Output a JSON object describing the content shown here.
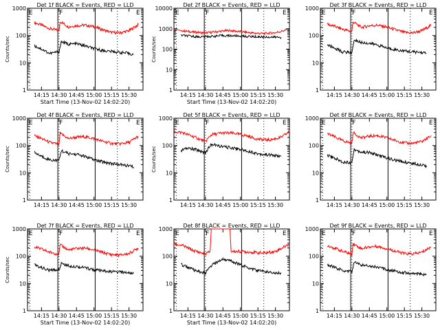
{
  "colors": {
    "events": "#000000",
    "lld": "#ff0000",
    "background": "#ffffff",
    "axes": "#000000"
  },
  "chart_data": [
    {
      "type": "line",
      "title": "Det 1f BLACK = Events, RED = LLD",
      "xlabel": "Start Time (13-Nov-02 14:02:20)",
      "ylabel": "Counts/sec",
      "yscale": "log",
      "ylim": [
        1,
        1000
      ],
      "y_ticks": [
        "1",
        "10",
        "100",
        "1000"
      ],
      "x_ticks": [
        "14:15",
        "14:30",
        "14:45",
        "15:00",
        "15:15",
        "15:30"
      ],
      "markers": [
        "E",
        "F",
        "E"
      ],
      "series": [
        {
          "key": "lld",
          "x": [
            "14:09",
            "14:15",
            "14:22",
            "14:30",
            "14:31",
            "14:38",
            "14:45",
            "14:52",
            "15:00",
            "15:08",
            "15:15",
            "15:22",
            "15:30",
            "15:38"
          ],
          "y": [
            300,
            240,
            180,
            150,
            330,
            210,
            230,
            240,
            210,
            160,
            130,
            125,
            150,
            250
          ]
        },
        {
          "key": "events",
          "x": [
            "14:09",
            "14:15",
            "14:22",
            "14:29",
            "14:30",
            "14:32",
            "14:38",
            "14:45",
            "14:52",
            "15:00",
            "15:08",
            "15:15",
            "15:22",
            "15:30",
            "15:34"
          ],
          "y": [
            42,
            32,
            22,
            25,
            25,
            60,
            48,
            50,
            42,
            33,
            28,
            26,
            24,
            22,
            20
          ]
        }
      ]
    },
    {
      "type": "line",
      "title": "Det 2f BLACK = Events, RED = LLD",
      "xlabel": "Start Time (13-Nov-02 14:02:20)",
      "ylabel": "Counts/sec",
      "yscale": "log",
      "ylim": [
        1,
        10000
      ],
      "y_ticks": [
        "1",
        "10",
        "100",
        "1000",
        "10000"
      ],
      "x_ticks": [
        "14:15",
        "14:30",
        "14:45",
        "15:00",
        "15:15",
        "15:30"
      ],
      "markers": [
        "E",
        "F",
        "E"
      ],
      "series": [
        {
          "key": "lld",
          "x": [
            "14:03",
            "14:10",
            "14:20",
            "14:30",
            "14:40",
            "14:50",
            "15:00",
            "15:10",
            "15:20",
            "15:30",
            "15:40"
          ],
          "y": [
            950,
            800,
            680,
            620,
            720,
            820,
            720,
            620,
            580,
            640,
            880
          ]
        },
        {
          "key": "events",
          "x": [
            "14:09",
            "14:15",
            "14:25",
            "14:35",
            "14:45",
            "14:55",
            "15:05",
            "15:15",
            "15:25",
            "15:35"
          ],
          "y": [
            480,
            440,
            400,
            420,
            460,
            450,
            420,
            400,
            390,
            380
          ]
        }
      ]
    },
    {
      "type": "line",
      "title": "Det 3f BLACK = Events, RED = LLD",
      "xlabel": "",
      "ylabel": "",
      "yscale": "log",
      "ylim": [
        1,
        1000
      ],
      "y_ticks": [
        "1",
        "10",
        "100",
        "1000"
      ],
      "x_ticks": [
        "14:15",
        "14:30",
        "14:45",
        "15:00",
        "15:15",
        "15:30"
      ],
      "markers": [
        "E",
        "F",
        "E"
      ],
      "series": [
        {
          "key": "lld",
          "x": [
            "14:09",
            "14:15",
            "14:22",
            "14:30",
            "14:31",
            "14:38",
            "14:45",
            "14:52",
            "15:00",
            "15:08",
            "15:15",
            "15:22",
            "15:30",
            "15:38"
          ],
          "y": [
            260,
            220,
            170,
            140,
            320,
            200,
            230,
            240,
            200,
            160,
            130,
            125,
            150,
            240
          ]
        },
        {
          "key": "events",
          "x": [
            "14:09",
            "14:15",
            "14:22",
            "14:29",
            "14:30",
            "14:32",
            "14:38",
            "14:45",
            "14:52",
            "15:00",
            "15:08",
            "15:15",
            "15:22",
            "15:30",
            "15:34"
          ],
          "y": [
            45,
            35,
            25,
            24,
            24,
            70,
            55,
            52,
            45,
            35,
            30,
            27,
            25,
            24,
            22
          ]
        }
      ]
    },
    {
      "type": "line",
      "title": "Det 4f BLACK = Events, RED = LLD",
      "xlabel": "",
      "ylabel": "Counts/sec",
      "yscale": "log",
      "ylim": [
        1,
        1000
      ],
      "y_ticks": [
        "1",
        "10",
        "100",
        "1000"
      ],
      "x_ticks": [
        "14:15",
        "14:30",
        "14:45",
        "15:00",
        "15:15",
        "15:30"
      ],
      "markers": [
        "E",
        "F",
        "E"
      ],
      "series": [
        {
          "key": "lld",
          "x": [
            "14:09",
            "14:15",
            "14:22",
            "14:30",
            "14:31",
            "14:38",
            "14:45",
            "14:52",
            "15:00",
            "15:08",
            "15:15",
            "15:22",
            "15:30",
            "15:38"
          ],
          "y": [
            230,
            180,
            130,
            110,
            280,
            180,
            200,
            210,
            180,
            140,
            120,
            115,
            130,
            220
          ]
        },
        {
          "key": "events",
          "x": [
            "14:09",
            "14:15",
            "14:22",
            "14:29",
            "14:30",
            "14:32",
            "14:38",
            "14:45",
            "14:52",
            "15:00",
            "15:08",
            "15:15",
            "15:22",
            "15:30",
            "15:34"
          ],
          "y": [
            55,
            40,
            30,
            28,
            28,
            65,
            50,
            48,
            40,
            30,
            25,
            22,
            20,
            18,
            16
          ]
        }
      ]
    },
    {
      "type": "line",
      "title": "Det 5f BLACK = Events, RED = LLD",
      "xlabel": "",
      "ylabel": "Counts/sec",
      "yscale": "log",
      "ylim": [
        1,
        1000
      ],
      "y_ticks": [
        "1",
        "10",
        "100",
        "1000"
      ],
      "x_ticks": [
        "14:15",
        "14:30",
        "14:45",
        "15:00",
        "15:15",
        "15:30"
      ],
      "markers": [
        "E",
        "F",
        "E"
      ],
      "series": [
        {
          "key": "lld",
          "x": [
            "14:03",
            "14:10",
            "14:20",
            "14:30",
            "14:35",
            "14:45",
            "14:55",
            "15:05",
            "15:15",
            "15:25",
            "15:35",
            "15:42"
          ],
          "y": [
            320,
            300,
            210,
            140,
            250,
            290,
            280,
            230,
            170,
            160,
            200,
            320
          ]
        },
        {
          "key": "events",
          "x": [
            "14:09",
            "14:15",
            "14:22",
            "14:30",
            "14:35",
            "14:45",
            "14:55",
            "15:05",
            "15:15",
            "15:25",
            "15:35"
          ],
          "y": [
            65,
            80,
            70,
            55,
            110,
            90,
            80,
            65,
            50,
            45,
            40
          ]
        }
      ]
    },
    {
      "type": "line",
      "title": "Det 6f BLACK = Events, RED = LLD",
      "xlabel": "",
      "ylabel": "",
      "yscale": "log",
      "ylim": [
        1,
        1000
      ],
      "y_ticks": [
        "1",
        "10",
        "100",
        "1000"
      ],
      "x_ticks": [
        "14:15",
        "14:30",
        "14:45",
        "15:00",
        "15:15",
        "15:30"
      ],
      "markers": [
        "E",
        "F",
        "E"
      ],
      "series": [
        {
          "key": "lld",
          "x": [
            "14:09",
            "14:15",
            "14:22",
            "14:30",
            "14:31",
            "14:38",
            "14:45",
            "14:52",
            "15:00",
            "15:08",
            "15:15",
            "15:22",
            "15:30",
            "15:38"
          ],
          "y": [
            270,
            210,
            150,
            120,
            300,
            190,
            220,
            230,
            190,
            150,
            125,
            120,
            140,
            230
          ]
        },
        {
          "key": "events",
          "x": [
            "14:09",
            "14:15",
            "14:22",
            "14:29",
            "14:30",
            "14:32",
            "14:38",
            "14:45",
            "14:52",
            "15:00",
            "15:08",
            "15:15",
            "15:22",
            "15:30",
            "15:34"
          ],
          "y": [
            45,
            35,
            25,
            24,
            24,
            72,
            58,
            55,
            45,
            35,
            28,
            25,
            22,
            20,
            18
          ]
        }
      ]
    },
    {
      "type": "line",
      "title": "Det 7f BLACK = Events, RED = LLD",
      "xlabel": "Start Time (13-Nov-02 14:02:20)",
      "ylabel": "Counts/sec",
      "yscale": "log",
      "ylim": [
        1,
        1000
      ],
      "y_ticks": [
        "1",
        "10",
        "100",
        "1000"
      ],
      "x_ticks": [
        "14:15",
        "14:30",
        "14:45",
        "15:00",
        "15:15",
        "15:30"
      ],
      "markers": [
        "E",
        "F",
        "E"
      ],
      "series": [
        {
          "key": "lld",
          "x": [
            "14:09",
            "14:15",
            "14:22",
            "14:30",
            "14:31",
            "14:38",
            "14:45",
            "14:52",
            "15:00",
            "15:08",
            "15:15",
            "15:22",
            "15:30",
            "15:38"
          ],
          "y": [
            220,
            180,
            140,
            120,
            260,
            170,
            190,
            200,
            170,
            135,
            115,
            110,
            125,
            200
          ]
        },
        {
          "key": "events",
          "x": [
            "14:09",
            "14:15",
            "14:22",
            "14:29",
            "14:30",
            "14:32",
            "14:38",
            "14:45",
            "14:52",
            "15:00",
            "15:08",
            "15:15",
            "15:22",
            "15:30",
            "15:34"
          ],
          "y": [
            48,
            38,
            30,
            32,
            32,
            55,
            45,
            42,
            38,
            32,
            28,
            27,
            26,
            25,
            24
          ]
        }
      ]
    },
    {
      "type": "line",
      "title": "Det 8f BLACK = Events, RED = LLD",
      "xlabel": "Start Time (13-Nov-02 14:02:20)",
      "ylabel": "",
      "yscale": "log",
      "ylim": [
        1,
        1000
      ],
      "y_ticks": [
        "1",
        "10",
        "100",
        "1000"
      ],
      "x_ticks": [
        "14:15",
        "14:30",
        "14:45",
        "15:00",
        "15:15",
        "15:30"
      ],
      "markers": [
        "E",
        "F",
        "E"
      ],
      "series": [
        {
          "key": "lld",
          "x": [
            "14:03",
            "14:10",
            "14:20",
            "14:30",
            "14:34",
            "14:35",
            "14:36",
            "14:50",
            "14:51",
            "14:52",
            "15:00",
            "15:10",
            "15:20",
            "15:30",
            "15:42"
          ],
          "y": [
            280,
            250,
            160,
            120,
            150,
            1000,
            1000,
            1000,
            1000,
            150,
            150,
            140,
            130,
            150,
            280
          ]
        },
        {
          "key": "events",
          "x": [
            "14:09",
            "14:15",
            "14:22",
            "14:30",
            "14:35",
            "14:45",
            "14:55",
            "15:05",
            "15:15",
            "15:25",
            "15:35"
          ],
          "y": [
            50,
            40,
            28,
            24,
            45,
            80,
            60,
            40,
            30,
            26,
            24
          ]
        }
      ]
    },
    {
      "type": "line",
      "title": "Det 9f BLACK = Events, RED = LLD",
      "xlabel": "",
      "ylabel": "",
      "yscale": "log",
      "ylim": [
        1,
        1000
      ],
      "y_ticks": [
        "1",
        "10",
        "100",
        "1000"
      ],
      "x_ticks": [
        "14:15",
        "14:30",
        "14:45",
        "15:00",
        "15:15",
        "15:30"
      ],
      "markers": [
        "E",
        "F",
        "E"
      ],
      "series": [
        {
          "key": "lld",
          "x": [
            "14:09",
            "14:15",
            "14:22",
            "14:30",
            "14:31",
            "14:38",
            "14:45",
            "14:52",
            "15:00",
            "15:08",
            "15:15",
            "15:22",
            "15:30",
            "15:38"
          ],
          "y": [
            250,
            200,
            150,
            120,
            290,
            190,
            220,
            230,
            190,
            150,
            125,
            120,
            140,
            220
          ]
        },
        {
          "key": "events",
          "x": [
            "14:09",
            "14:15",
            "14:22",
            "14:29",
            "14:30",
            "14:32",
            "14:38",
            "14:45",
            "14:52",
            "15:00",
            "15:08",
            "15:15",
            "15:22",
            "15:30",
            "15:34"
          ],
          "y": [
            50,
            40,
            30,
            28,
            28,
            60,
            48,
            45,
            40,
            32,
            28,
            25,
            23,
            22,
            21
          ]
        }
      ]
    }
  ]
}
